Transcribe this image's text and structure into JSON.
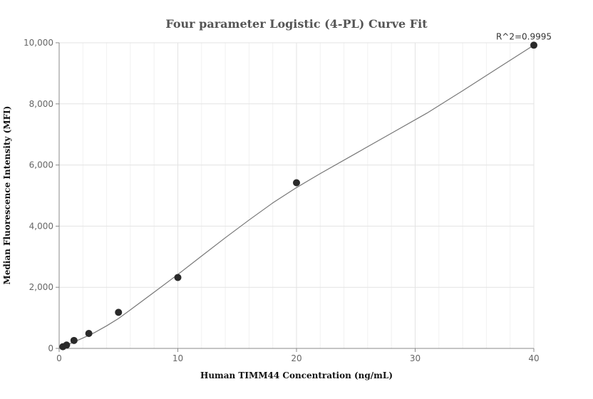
{
  "chart_data": {
    "type": "scatter",
    "title": "Four parameter Logistic (4-PL) Curve Fit",
    "xlabel": "Human TIMM44 Concentration (ng/mL)",
    "ylabel": "Median Fluorescence Intensity (MFI)",
    "xlim": [
      0,
      40
    ],
    "ylim": [
      0,
      10000
    ],
    "xticks": [
      0,
      10,
      20,
      30,
      40
    ],
    "xtick_labels": [
      "0",
      "10",
      "20",
      "30",
      "40"
    ],
    "yticks": [
      0,
      2000,
      4000,
      6000,
      8000,
      10000
    ],
    "ytick_labels": [
      "0",
      "2,000",
      "4,000",
      "6,000",
      "8,000",
      "10,000"
    ],
    "grid": true,
    "annotation": "R^2=0.9995",
    "points": {
      "x": [
        0.3125,
        0.625,
        1.25,
        2.5,
        5,
        10,
        20,
        40
      ],
      "y": [
        55,
        110,
        260,
        490,
        1180,
        2320,
        5420,
        9920
      ]
    },
    "fit_curve": {
      "x": [
        0.3125,
        1,
        2,
        3,
        4,
        5,
        6,
        8,
        10,
        12,
        14,
        16,
        18,
        20,
        22,
        25,
        28,
        31,
        34,
        37,
        40
      ],
      "y": [
        60,
        170,
        340,
        520,
        740,
        980,
        1260,
        1840,
        2420,
        3020,
        3620,
        4200,
        4760,
        5260,
        5720,
        6380,
        7040,
        7700,
        8430,
        9180,
        9920
      ]
    }
  }
}
